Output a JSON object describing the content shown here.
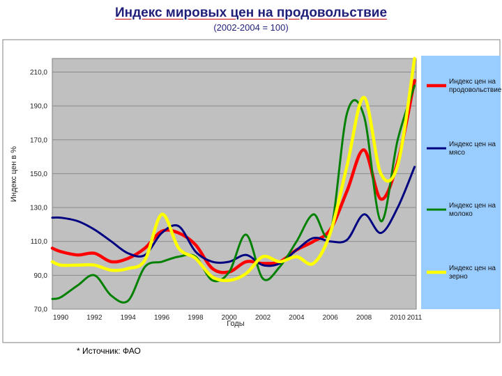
{
  "header": {
    "title": "Индекс мировых цен на продовольствие",
    "subtitle": "(2002-2004 = 100)"
  },
  "footer": {
    "source": "* Источник: ФАО"
  },
  "chart_data": {
    "type": "line",
    "title": "Индекс мировых цен на продовольствие",
    "subtitle": "(2002-2004 = 100)",
    "xlabel": "Годы",
    "ylabel": "Индекс цен в %",
    "xlim": [
      1989.5,
      2011.1
    ],
    "ylim": [
      70,
      218
    ],
    "x_ticks": [
      "1990",
      "1992",
      "1994",
      "1996",
      "1998",
      "2000",
      "2002",
      "2004",
      "2006",
      "2008",
      "2010",
      "2011"
    ],
    "y_ticks": [
      "70,0",
      "90,0",
      "110,0",
      "130,0",
      "150,0",
      "170,0",
      "190,0",
      "210,0"
    ],
    "grid": true,
    "plot_background": "#c0c0c0",
    "legend_background": "#99ccff",
    "legend_position": "right",
    "series": [
      {
        "name": "Индекс цен на продовольствие",
        "color": "#ff0000",
        "x": [
          1989.5,
          1990,
          1991,
          1992,
          1993,
          1994,
          1995,
          1996,
          1997,
          1998,
          1999,
          2000,
          2001,
          2002,
          2003,
          2004,
          2005,
          2006,
          2007,
          2008,
          2009,
          2010,
          2011
        ],
        "y": [
          106,
          104,
          102,
          103,
          98,
          100,
          106,
          116,
          115,
          108,
          94,
          92,
          98,
          97,
          98,
          105,
          110,
          117,
          140,
          164,
          135,
          157,
          205
        ]
      },
      {
        "name": "Индекс цен на мясо",
        "color": "#000080",
        "x": [
          1989.5,
          1990,
          1991,
          1992,
          1993,
          1994,
          1995,
          1996,
          1997,
          1998,
          1999,
          2000,
          2001,
          2002,
          2003,
          2004,
          2005,
          2006,
          2007,
          2008,
          2009,
          2010,
          2011
        ],
        "y": [
          124,
          124,
          122,
          117,
          110,
          103,
          102,
          115,
          119,
          104,
          98,
          98,
          102,
          96,
          97,
          105,
          112,
          110,
          111,
          126,
          115,
          130,
          154
        ]
      },
      {
        "name": "Индекс цен на молоко",
        "color": "#008000",
        "x": [
          1989.5,
          1990,
          1991,
          1992,
          1993,
          1994,
          1995,
          1996,
          1997,
          1998,
          1999,
          2000,
          2001,
          2002,
          2003,
          2004,
          2005,
          2006,
          2007,
          2008,
          2009,
          2010,
          2011
        ],
        "y": [
          76,
          77,
          84,
          90,
          78,
          75,
          95,
          98,
          101,
          101,
          87,
          92,
          114,
          88,
          95,
          110,
          126,
          115,
          186,
          184,
          122,
          170,
          202
        ]
      },
      {
        "name": "Индекс цен на зерно",
        "color": "#ffff00",
        "x": [
          1989.5,
          1990,
          1991,
          1992,
          1993,
          1994,
          1995,
          1996,
          1997,
          1998,
          1999,
          2000,
          2001,
          2002,
          2003,
          2004,
          2005,
          2006,
          2007,
          2008,
          2009,
          2010,
          2011
        ],
        "y": [
          98,
          96,
          96,
          96,
          93,
          94,
          99,
          126,
          106,
          100,
          89,
          87,
          91,
          101,
          98,
          101,
          97,
          115,
          155,
          195,
          150,
          155,
          218
        ]
      }
    ]
  }
}
